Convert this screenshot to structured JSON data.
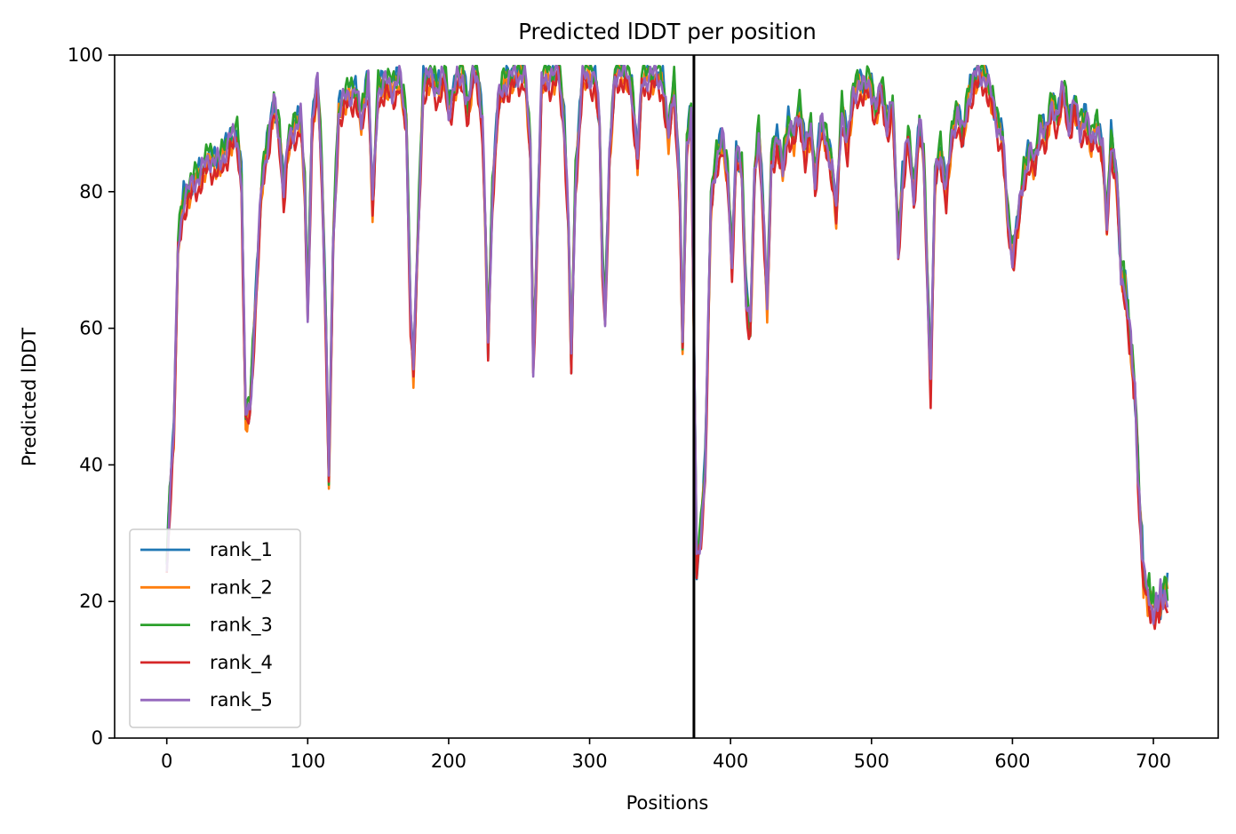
{
  "chart_data": {
    "type": "line",
    "title": "Predicted lDDT per position",
    "xlabel": "Positions",
    "ylabel": "Predicted lDDT",
    "xlim": [
      -37,
      746
    ],
    "ylim": [
      0,
      100
    ],
    "xticks": [
      0,
      100,
      200,
      300,
      400,
      500,
      600,
      700
    ],
    "yticks": [
      0,
      20,
      40,
      60,
      80,
      100
    ],
    "grid": false,
    "legend_position": "lower-left",
    "vline": {
      "x": 374,
      "color": "#000000"
    },
    "series": [
      {
        "name": "rank_1",
        "color": "#1f77b4",
        "offset": 0.4
      },
      {
        "name": "rank_2",
        "color": "#ff7f0e",
        "offset": -0.6
      },
      {
        "name": "rank_3",
        "color": "#2ca02c",
        "offset": 0.9
      },
      {
        "name": "rank_4",
        "color": "#d62728",
        "offset": -1.6
      },
      {
        "name": "rank_5",
        "color": "#9467bd",
        "offset": 0.0
      }
    ],
    "profile": [
      [
        0,
        25
      ],
      [
        2,
        35
      ],
      [
        5,
        45
      ],
      [
        8,
        72
      ],
      [
        12,
        79
      ],
      [
        18,
        81
      ],
      [
        25,
        83
      ],
      [
        30,
        85
      ],
      [
        38,
        84
      ],
      [
        45,
        88
      ],
      [
        50,
        88
      ],
      [
        53,
        82
      ],
      [
        56,
        47
      ],
      [
        59,
        48
      ],
      [
        62,
        60
      ],
      [
        67,
        80
      ],
      [
        72,
        88
      ],
      [
        76,
        93
      ],
      [
        80,
        88
      ],
      [
        83,
        80
      ],
      [
        86,
        87
      ],
      [
        90,
        89
      ],
      [
        95,
        91
      ],
      [
        98,
        80
      ],
      [
        100,
        62
      ],
      [
        103,
        90
      ],
      [
        107,
        96
      ],
      [
        110,
        83
      ],
      [
        113,
        60
      ],
      [
        115,
        38
      ],
      [
        118,
        72
      ],
      [
        122,
        92
      ],
      [
        128,
        94
      ],
      [
        134,
        95
      ],
      [
        138,
        90
      ],
      [
        143,
        97
      ],
      [
        146,
        78
      ],
      [
        150,
        95
      ],
      [
        155,
        96
      ],
      [
        160,
        95
      ],
      [
        165,
        97
      ],
      [
        170,
        90
      ],
      [
        173,
        62
      ],
      [
        175,
        54
      ],
      [
        178,
        72
      ],
      [
        182,
        96
      ],
      [
        187,
        97
      ],
      [
        192,
        95
      ],
      [
        197,
        97
      ],
      [
        200,
        92
      ],
      [
        205,
        96
      ],
      [
        210,
        97
      ],
      [
        214,
        92
      ],
      [
        217,
        97
      ],
      [
        220,
        98
      ],
      [
        224,
        90
      ],
      [
        226,
        75
      ],
      [
        228,
        57
      ],
      [
        231,
        80
      ],
      [
        235,
        93
      ],
      [
        240,
        96
      ],
      [
        245,
        97
      ],
      [
        250,
        97
      ],
      [
        254,
        98
      ],
      [
        258,
        86
      ],
      [
        260,
        55
      ],
      [
        262,
        68
      ],
      [
        266,
        96
      ],
      [
        270,
        97
      ],
      [
        275,
        97
      ],
      [
        278,
        98
      ],
      [
        282,
        90
      ],
      [
        285,
        75
      ],
      [
        287,
        55
      ],
      [
        290,
        82
      ],
      [
        295,
        97
      ],
      [
        300,
        97
      ],
      [
        304,
        97
      ],
      [
        307,
        90
      ],
      [
        309,
        70
      ],
      [
        311,
        62
      ],
      [
        314,
        85
      ],
      [
        318,
        97
      ],
      [
        322,
        98
      ],
      [
        326,
        97
      ],
      [
        330,
        95
      ],
      [
        334,
        85
      ],
      [
        337,
        96
      ],
      [
        342,
        97
      ],
      [
        347,
        97
      ],
      [
        352,
        96
      ],
      [
        356,
        88
      ],
      [
        360,
        96
      ],
      [
        364,
        80
      ],
      [
        366,
        57
      ],
      [
        369,
        87
      ],
      [
        372,
        92
      ],
      [
        374,
        60
      ],
      [
        376,
        25
      ],
      [
        379,
        30
      ],
      [
        382,
        40
      ],
      [
        386,
        78
      ],
      [
        390,
        85
      ],
      [
        394,
        88
      ],
      [
        398,
        82
      ],
      [
        401,
        70
      ],
      [
        404,
        86
      ],
      [
        408,
        83
      ],
      [
        411,
        65
      ],
      [
        414,
        60
      ],
      [
        417,
        82
      ],
      [
        420,
        89
      ],
      [
        423,
        78
      ],
      [
        426,
        63
      ],
      [
        429,
        85
      ],
      [
        433,
        88
      ],
      [
        437,
        83
      ],
      [
        441,
        90
      ],
      [
        445,
        88
      ],
      [
        449,
        92
      ],
      [
        453,
        86
      ],
      [
        457,
        89
      ],
      [
        460,
        82
      ],
      [
        464,
        90
      ],
      [
        468,
        87
      ],
      [
        472,
        84
      ],
      [
        475,
        77
      ],
      [
        479,
        92
      ],
      [
        483,
        87
      ],
      [
        487,
        94
      ],
      [
        491,
        96
      ],
      [
        495,
        95
      ],
      [
        499,
        96
      ],
      [
        503,
        92
      ],
      [
        507,
        95
      ],
      [
        511,
        90
      ],
      [
        515,
        93
      ],
      [
        519,
        72
      ],
      [
        522,
        82
      ],
      [
        526,
        88
      ],
      [
        530,
        80
      ],
      [
        534,
        90
      ],
      [
        537,
        85
      ],
      [
        540,
        65
      ],
      [
        542,
        52
      ],
      [
        545,
        82
      ],
      [
        549,
        86
      ],
      [
        553,
        80
      ],
      [
        557,
        88
      ],
      [
        561,
        92
      ],
      [
        565,
        88
      ],
      [
        569,
        94
      ],
      [
        573,
        97
      ],
      [
        577,
        97
      ],
      [
        581,
        97
      ],
      [
        585,
        94
      ],
      [
        589,
        90
      ],
      [
        593,
        88
      ],
      [
        597,
        75
      ],
      [
        600,
        71
      ],
      [
        604,
        76
      ],
      [
        608,
        82
      ],
      [
        612,
        86
      ],
      [
        616,
        84
      ],
      [
        620,
        90
      ],
      [
        624,
        88
      ],
      [
        628,
        93
      ],
      [
        632,
        91
      ],
      [
        636,
        95
      ],
      [
        640,
        90
      ],
      [
        644,
        93
      ],
      [
        648,
        89
      ],
      [
        652,
        91
      ],
      [
        656,
        87
      ],
      [
        660,
        90
      ],
      [
        664,
        86
      ],
      [
        667,
        75
      ],
      [
        670,
        88
      ],
      [
        674,
        82
      ],
      [
        677,
        68
      ],
      [
        680,
        66
      ],
      [
        683,
        60
      ],
      [
        687,
        50
      ],
      [
        690,
        35
      ],
      [
        693,
        24
      ],
      [
        697,
        20
      ],
      [
        701,
        19
      ],
      [
        705,
        20
      ],
      [
        708,
        21
      ],
      [
        710,
        21
      ]
    ]
  }
}
